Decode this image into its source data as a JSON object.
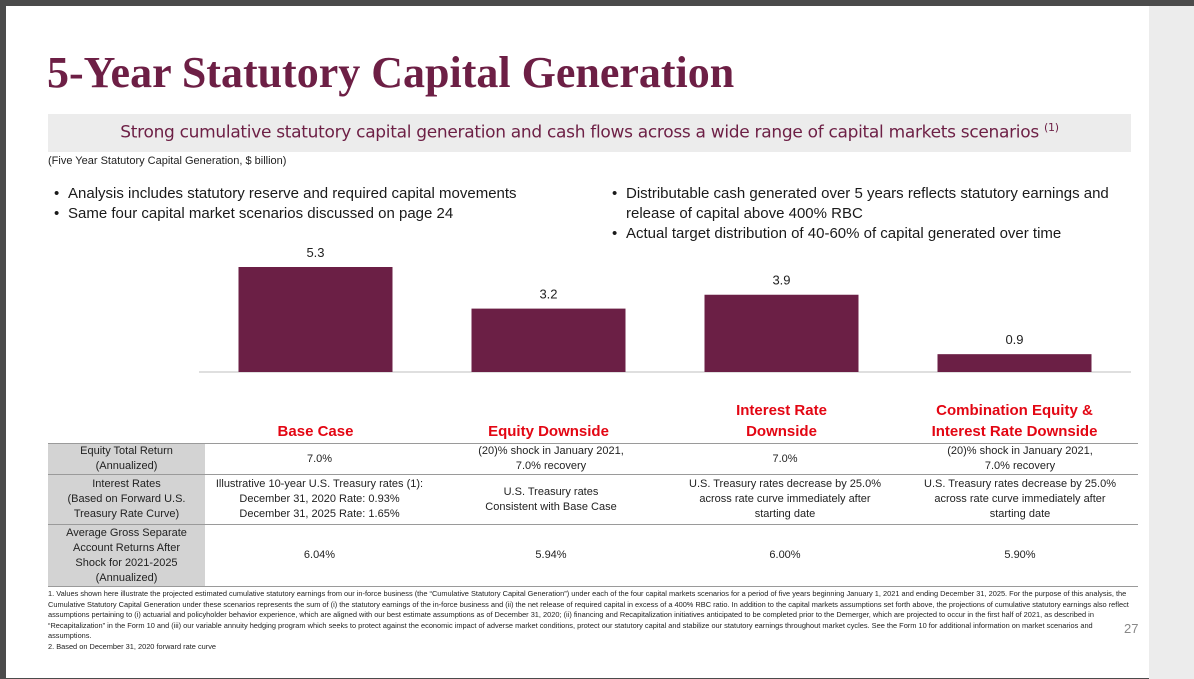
{
  "slide": {
    "title": "5-Year Statutory Capital Generation",
    "subtitle": "Strong cumulative statutory capital generation and cash flows across a wide range of capital markets scenarios",
    "subtitle_note": "(1)",
    "caption": "(Five Year Statutory Capital Generation, $ billion)",
    "bullets_left": [
      "Analysis includes statutory reserve and required capital movements",
      "Same four capital market scenarios discussed on page 24"
    ],
    "bullets_right": [
      "Distributable cash generated over 5 years reflects statutory earnings and release of capital above 400% RBC",
      "Actual target distribution of 40-60% of capital generated over time"
    ],
    "page_number": "27"
  },
  "chart_data": {
    "type": "bar",
    "categories": [
      "Base Case",
      "Equity Downside",
      "Interest Rate Downside",
      "Combination Equity & Interest Rate Downside"
    ],
    "category_lines": [
      [
        "Base Case"
      ],
      [
        "Equity Downside"
      ],
      [
        "Interest Rate",
        "Downside"
      ],
      [
        "Combination Equity &",
        "Interest Rate Downside"
      ]
    ],
    "values": [
      5.3,
      3.2,
      3.9,
      0.9
    ],
    "value_labels": [
      "5.3",
      "3.2",
      "3.9",
      "0.9"
    ],
    "ylim": [
      0,
      5.3
    ],
    "title": "",
    "xlabel": "",
    "ylabel": "",
    "bar_color": "#6b1f45",
    "label_color": "#e30613",
    "grid": false
  },
  "table": {
    "rows": [
      {
        "head": [
          "Equity Total Return",
          "(Annualized)"
        ],
        "cells": [
          [
            "7.0%"
          ],
          [
            "(20)% shock in January 2021,",
            "7.0% recovery"
          ],
          [
            "7.0%"
          ],
          [
            "(20)% shock in January 2021,",
            "7.0% recovery"
          ]
        ]
      },
      {
        "head": [
          "Interest Rates",
          "(Based on Forward U.S.",
          "Treasury Rate Curve)"
        ],
        "cells": [
          [
            "Illustrative 10-year U.S. Treasury rates (1):",
            "December 31, 2020 Rate: 0.93%",
            "December 31, 2025 Rate: 1.65%"
          ],
          [
            "U.S. Treasury rates",
            "Consistent with Base Case"
          ],
          [
            "U.S. Treasury rates decrease by 25.0%",
            "across rate curve immediately after",
            "starting date"
          ],
          [
            "U.S. Treasury rates decrease by 25.0%",
            "across rate curve immediately after",
            "starting date"
          ]
        ]
      },
      {
        "head": [
          "Average Gross Separate",
          "Account Returns After",
          "Shock for 2021-2025",
          "(Annualized)"
        ],
        "cells": [
          [
            "6.04%"
          ],
          [
            "5.94%"
          ],
          [
            "6.00%"
          ],
          [
            "5.90%"
          ]
        ]
      }
    ]
  },
  "footnotes": [
    "1. Values shown here illustrate the projected estimated cumulative statutory earnings from our in-force business (the “Cumulative Statutory Capital Generation”) under each of the four capital markets scenarios for a period of five years beginning January 1, 2021 and ending December 31, 2025. For the purpose of this analysis, the Cumulative Statutory Capital Generation under these scenarios represents the sum of (i) the statutory earnings of the in-force business and (ii) the net release of required capital in excess of a 400% RBC ratio. In addition to the capital markets assumptions set forth above, the projections of cumulative statutory earnings also reflect assumptions pertaining to (i) actuarial and policyholder behavior experience, which are aligned with our best estimate assumptions as of December 31, 2020; (ii) financing and Recapitalization initiatives anticipated to be completed prior to the Demerger, which are projected to occur in the first half of 2021, as described in “Recapitalization” in the Form 10 and (iii) our variable annuity hedging program which seeks to protect against the economic impact of adverse market conditions, protect our statutory capital and stabilize our statutory earnings throughout market cycles. See the Form 10 for additional information on market scenarios and assumptions.",
    "2. Based on December 31, 2020 forward rate curve"
  ]
}
